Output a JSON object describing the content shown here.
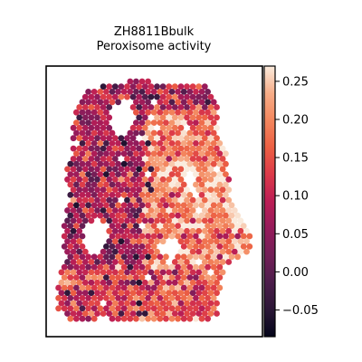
{
  "chart_data": {
    "type": "heatmap",
    "subtype": "spatial-hexbin",
    "title": "ZH8811Bbulk",
    "subtitle": "Peroxisome activity",
    "xlabel": "",
    "ylabel": "",
    "axes_ticks": false,
    "colormap": "rocket",
    "colorbar": {
      "vmin": -0.085,
      "vmax": 0.27,
      "ticks": [
        -0.05,
        0.0,
        0.05,
        0.1,
        0.15,
        0.2,
        0.25
      ],
      "tick_labels": [
        "−0.05",
        "0.00",
        "0.05",
        "0.10",
        "0.15",
        "0.20",
        "0.25"
      ],
      "position": "right"
    },
    "spatial_pattern": {
      "description": "Tissue section with low-to-mid activity on the left half and high activity on the right half, with holes in the tissue",
      "left_region_mean": 0.08,
      "right_region_mean": 0.19,
      "value_range": [
        -0.085,
        0.27
      ]
    }
  }
}
